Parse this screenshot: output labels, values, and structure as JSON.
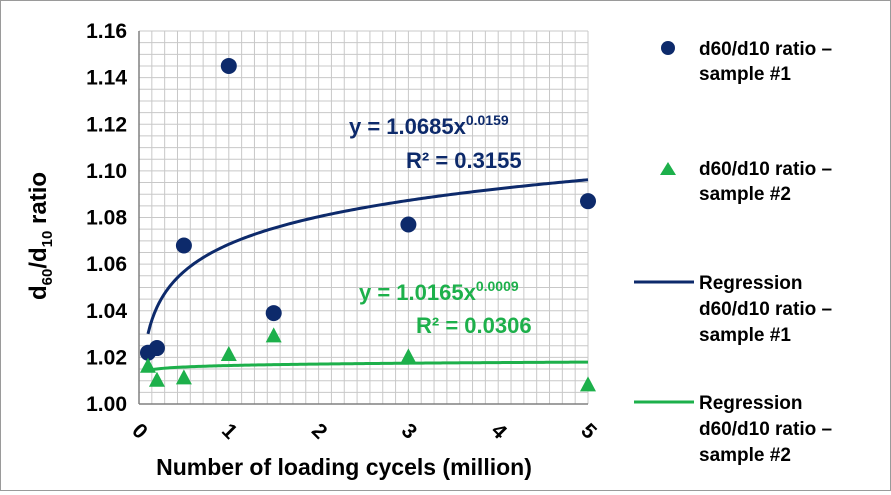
{
  "chart_data": {
    "type": "scatter",
    "xlabel": "Number of loading cycels (million)",
    "ylabel_main": "d",
    "ylabel_sub1": "60",
    "ylabel_mid": "/d",
    "ylabel_sub2": "10",
    "ylabel_tail": " ratio",
    "xlim": [
      0,
      5
    ],
    "ylim": [
      1.0,
      1.16
    ],
    "xticks": [
      "0",
      "1",
      "2",
      "3",
      "4",
      "5"
    ],
    "yticks": [
      "1.00",
      "1.02",
      "1.04",
      "1.06",
      "1.08",
      "1.10",
      "1.12",
      "1.14",
      "1.16"
    ],
    "grid": true,
    "legend_position": "right",
    "series": [
      {
        "name": "d60/d10 ratio – sample #1",
        "legend_line1": "d60/d10 ratio –",
        "legend_line2": "sample #1",
        "marker": "circle",
        "color": "#0d2a6b",
        "x": [
          0.1,
          0.2,
          0.5,
          1.0,
          1.5,
          3.0,
          5.0
        ],
        "y": [
          1.022,
          1.024,
          1.068,
          1.145,
          1.039,
          1.077,
          1.087
        ]
      },
      {
        "name": "d60/d10 ratio – sample #2",
        "legend_line1": "d60/d10 ratio –",
        "legend_line2": "sample #2",
        "marker": "triangle",
        "color": "#1db04b",
        "x": [
          0.1,
          0.2,
          0.5,
          1.0,
          1.5,
          3.0,
          5.0
        ],
        "y": [
          1.016,
          1.01,
          1.011,
          1.021,
          1.029,
          1.02,
          1.008
        ]
      },
      {
        "name": "Regression d60/d10 ratio – sample #1",
        "legend_line1": "Regression",
        "legend_line2": "d60/d10 ratio –",
        "legend_line3": "sample #1",
        "marker": "line",
        "color": "#0d2a6b",
        "coef": 1.0685,
        "exp": 0.0159,
        "equation": "y = 1.0685x",
        "exponent_label": "0.0159",
        "r2": "R² = 0.3155"
      },
      {
        "name": "Regression d60/d10 ratio – sample #2",
        "legend_line1": "Regression",
        "legend_line2": "d60/d10 ratio –",
        "legend_line3": "sample #2",
        "marker": "line",
        "color": "#1db04b",
        "coef": 1.0165,
        "exp": 0.0009,
        "equation": "y = 1.0165x",
        "exponent_label": "0.0009",
        "r2": "R² = 0.0306"
      }
    ]
  }
}
